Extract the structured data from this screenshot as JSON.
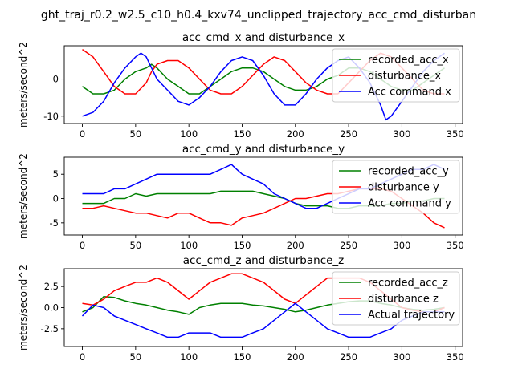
{
  "figure": {
    "suptitle": "ght_traj_r0.2_w2.5_c10_h0.4_kxv74_unclipped_trajectory_acc_cmd_disturban"
  },
  "chart_data": [
    {
      "type": "line",
      "title": "acc_cmd_x and disturbance_x",
      "xlabel": "",
      "ylabel": "meters/second^2",
      "xlim": [
        -17,
        357
      ],
      "ylim": [
        -12,
        9
      ],
      "xticks": [
        0,
        50,
        100,
        150,
        200,
        250,
        300,
        350
      ],
      "yticks": [
        -10,
        0
      ],
      "legend": "upper right",
      "series": [
        {
          "name": "recorded_acc_x",
          "color": "#008000",
          "x": [
            0,
            10,
            20,
            30,
            40,
            50,
            60,
            65,
            70,
            80,
            90,
            100,
            110,
            120,
            130,
            140,
            150,
            160,
            170,
            180,
            190,
            200,
            210,
            220,
            230,
            240,
            250,
            260,
            270,
            280,
            290,
            300,
            310,
            320,
            330,
            340
          ],
          "y": [
            -2,
            -4,
            -4,
            -3,
            0,
            2,
            3,
            4,
            3,
            0,
            -2,
            -4,
            -4,
            -2,
            0,
            2,
            3,
            3,
            2,
            0,
            -2,
            -3,
            -3,
            -2,
            0,
            1,
            3,
            3,
            2,
            0,
            -2,
            -3,
            -3,
            -1,
            1,
            3
          ]
        },
        {
          "name": "disturbance_x",
          "color": "#ff0000",
          "x": [
            0,
            10,
            20,
            30,
            40,
            50,
            60,
            65,
            70,
            80,
            90,
            100,
            110,
            120,
            130,
            140,
            150,
            160,
            170,
            180,
            190,
            200,
            210,
            220,
            230,
            240,
            250,
            260,
            270,
            280,
            290,
            300,
            310,
            320,
            330,
            340
          ],
          "y": [
            8,
            6,
            2,
            -2,
            -4,
            -4,
            -1,
            2,
            4,
            5,
            5,
            3,
            0,
            -3,
            -4,
            -4,
            -2,
            1,
            4,
            6,
            5,
            2,
            -1,
            -3,
            -4,
            -4,
            -1,
            2,
            5,
            7,
            6,
            3,
            0,
            -3,
            -4,
            -4
          ]
        },
        {
          "name": "Acc command x",
          "color": "#0000ff",
          "x": [
            0,
            10,
            20,
            30,
            40,
            50,
            55,
            60,
            65,
            70,
            80,
            90,
            100,
            110,
            120,
            130,
            140,
            150,
            160,
            170,
            180,
            190,
            200,
            210,
            220,
            230,
            240,
            250,
            260,
            270,
            280,
            285,
            290,
            300,
            310,
            320,
            330,
            340
          ],
          "y": [
            -10,
            -9,
            -6,
            -1,
            3,
            6,
            7,
            6,
            3,
            0,
            -3,
            -6,
            -7,
            -5,
            -2,
            2,
            5,
            6,
            5,
            1,
            -4,
            -7,
            -7,
            -4,
            0,
            3,
            5,
            6,
            3,
            -1,
            -7,
            -11,
            -10,
            -6,
            -2,
            2,
            5,
            7
          ]
        }
      ]
    },
    {
      "type": "line",
      "title": "acc_cmd_y and disturbance_y",
      "xlabel": "",
      "ylabel": "meters/second^2",
      "xlim": [
        -17,
        357
      ],
      "ylim": [
        -7.5,
        8.5
      ],
      "xticks": [
        0,
        50,
        100,
        150,
        200,
        250,
        300,
        350
      ],
      "yticks": [
        -5,
        0,
        5
      ],
      "legend": "upper right",
      "series": [
        {
          "name": "recorded_acc_y",
          "color": "#008000",
          "x": [
            0,
            10,
            20,
            30,
            40,
            50,
            60,
            70,
            80,
            90,
            100,
            110,
            120,
            130,
            140,
            150,
            160,
            170,
            180,
            190,
            200,
            210,
            220,
            230,
            240,
            250,
            260,
            270,
            280,
            290,
            300,
            310,
            320,
            330,
            340
          ],
          "y": [
            -1,
            -1,
            -1,
            0,
            0,
            1,
            0.5,
            1,
            1,
            1,
            1,
            1,
            1,
            1.5,
            1.5,
            1.5,
            1.5,
            1,
            0.5,
            0,
            -1,
            -1.5,
            -1.5,
            -1.5,
            -2,
            -2,
            -1.5,
            -1.5,
            -1.5,
            -1,
            -1,
            -0.5,
            -0.5,
            0,
            0
          ]
        },
        {
          "name": "disturbance y",
          "color": "#ff0000",
          "x": [
            0,
            10,
            20,
            30,
            40,
            50,
            60,
            70,
            80,
            90,
            100,
            110,
            120,
            130,
            140,
            150,
            160,
            170,
            180,
            190,
            200,
            210,
            220,
            230,
            240,
            250,
            260,
            270,
            280,
            290,
            300,
            310,
            320,
            330,
            340
          ],
          "y": [
            -2,
            -2,
            -1.5,
            -2,
            -2.5,
            -3,
            -3,
            -3.5,
            -4,
            -3,
            -3,
            -4,
            -5,
            -5,
            -5.5,
            -4,
            -3.5,
            -3,
            -2,
            -1,
            0,
            0,
            0.5,
            1,
            1,
            1.5,
            2,
            2,
            2,
            1.5,
            0,
            -1.5,
            -3,
            -5,
            -6
          ]
        },
        {
          "name": "Acc command y",
          "color": "#0000ff",
          "x": [
            0,
            10,
            20,
            30,
            40,
            50,
            60,
            70,
            80,
            90,
            100,
            110,
            120,
            130,
            140,
            145,
            150,
            160,
            170,
            180,
            190,
            200,
            210,
            220,
            230,
            240,
            250,
            260,
            270,
            280,
            290,
            300,
            310,
            320,
            330,
            340
          ],
          "y": [
            1,
            1,
            1,
            2,
            2,
            3,
            4,
            5,
            5,
            5,
            5,
            5,
            5,
            6,
            7,
            6,
            5,
            4,
            3,
            1,
            0,
            -1,
            -2,
            -2,
            -1,
            0,
            1,
            2,
            2,
            3,
            4,
            5,
            6,
            6,
            7,
            6
          ]
        }
      ]
    },
    {
      "type": "line",
      "title": "acc_cmd_z and disturbance_z",
      "xlabel": "",
      "ylabel": "meters/second^2",
      "xlim": [
        -17,
        357
      ],
      "ylim": [
        -4.6,
        4.6
      ],
      "xticks": [
        0,
        50,
        100,
        150,
        200,
        250,
        300,
        350
      ],
      "yticks": [
        -2.5,
        0.0,
        2.5
      ],
      "legend": "upper right",
      "series": [
        {
          "name": "recorded_acc_z",
          "color": "#008000",
          "x": [
            0,
            10,
            20,
            30,
            40,
            50,
            60,
            70,
            80,
            90,
            100,
            110,
            120,
            130,
            140,
            150,
            160,
            170,
            180,
            190,
            200,
            210,
            220,
            230,
            240,
            250,
            260,
            270,
            280,
            290,
            300,
            310,
            320,
            330,
            340
          ],
          "y": [
            -0.5,
            0,
            1.3,
            1.2,
            0.8,
            0.5,
            0.3,
            0,
            -0.3,
            -0.5,
            -0.8,
            0,
            0.3,
            0.5,
            0.5,
            0.5,
            0.3,
            0.2,
            0,
            -0.2,
            -0.5,
            -0.3,
            0,
            0.3,
            0.5,
            0.7,
            0.8,
            0.8,
            0.5,
            0.3,
            0,
            -0.2,
            -0.3,
            -0.2,
            0
          ]
        },
        {
          "name": "disturbance z",
          "color": "#ff0000",
          "x": [
            0,
            10,
            20,
            30,
            40,
            50,
            60,
            70,
            80,
            90,
            100,
            110,
            120,
            130,
            140,
            150,
            160,
            170,
            180,
            190,
            200,
            210,
            220,
            230,
            240,
            250,
            260,
            270,
            280,
            290,
            300,
            310,
            320,
            330,
            340
          ],
          "y": [
            0.5,
            0.3,
            1,
            2,
            2.5,
            3,
            3,
            3.5,
            3,
            2,
            1,
            2,
            3,
            3.5,
            4,
            4,
            3.5,
            3,
            2,
            1,
            0.5,
            1.5,
            2.5,
            3.5,
            3.5,
            3.5,
            3.5,
            3,
            2,
            1,
            0,
            -0.3,
            -0.5,
            -0.5,
            0
          ]
        },
        {
          "name": "Actual trajectory",
          "color": "#0000ff",
          "x": [
            0,
            10,
            20,
            30,
            40,
            50,
            60,
            70,
            80,
            90,
            100,
            110,
            120,
            130,
            140,
            150,
            160,
            170,
            180,
            190,
            200,
            210,
            220,
            230,
            240,
            250,
            260,
            270,
            280,
            290,
            300,
            310,
            320,
            330,
            340
          ],
          "y": [
            -1,
            0.3,
            0,
            -1,
            -1.5,
            -2,
            -2.5,
            -3,
            -3.5,
            -3.5,
            -3,
            -3,
            -3,
            -3.5,
            -3.5,
            -3.5,
            -3,
            -2.5,
            -1.5,
            -0.5,
            0.5,
            -0.5,
            -1.5,
            -2.5,
            -3,
            -3.5,
            -3.5,
            -3.5,
            -3,
            -2.5,
            -1.5,
            -1,
            -0.5,
            -0.5,
            -0.5
          ]
        }
      ]
    }
  ]
}
